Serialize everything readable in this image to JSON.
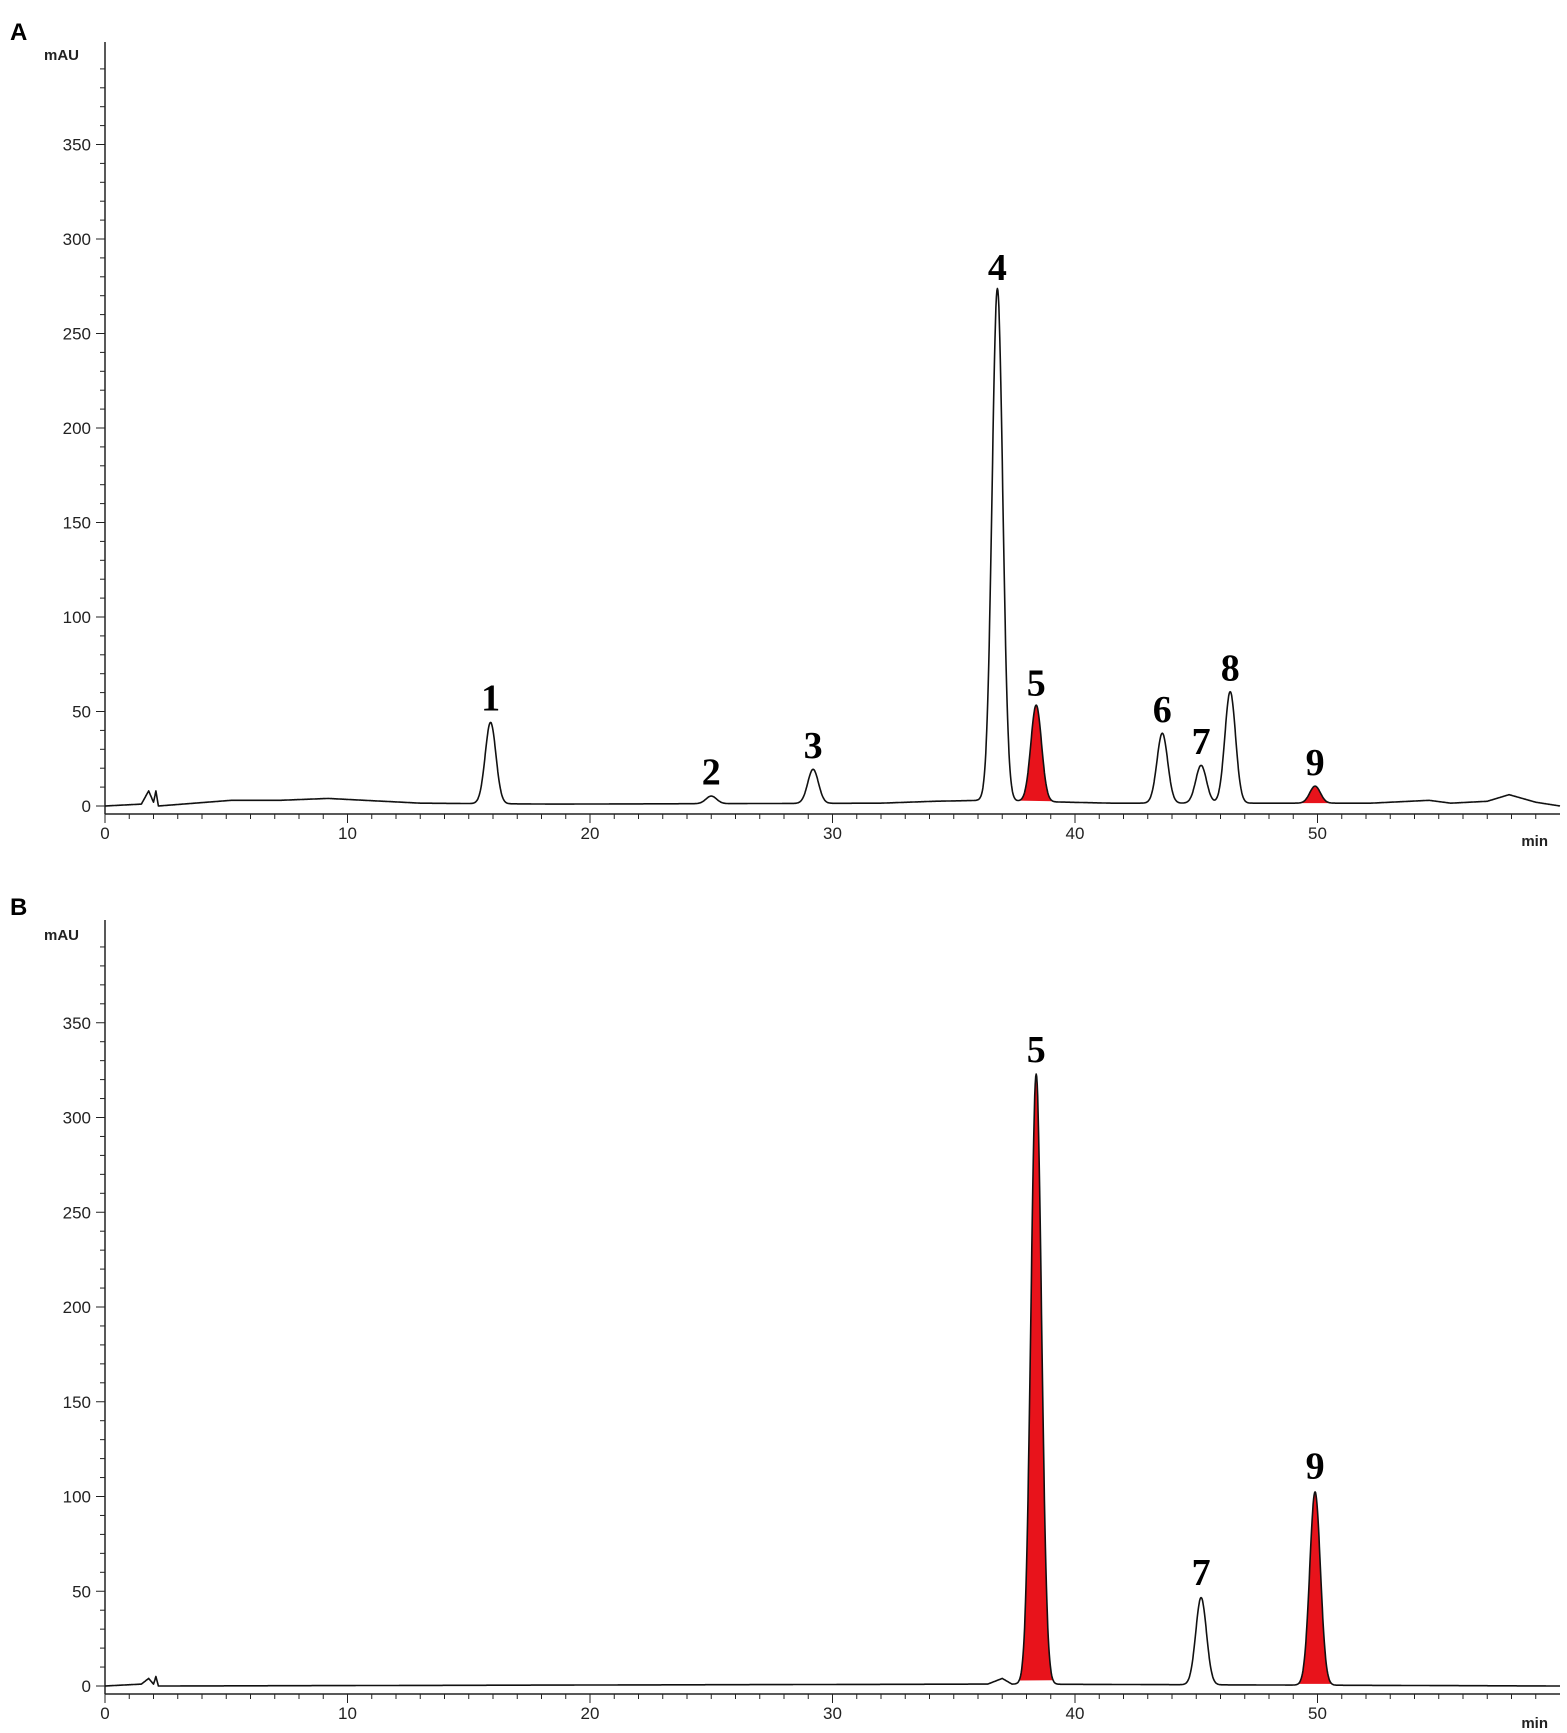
{
  "colors": {
    "trace": "#111111",
    "highlight": "#e8131b",
    "axis": "#222222"
  },
  "chart_data": [
    {
      "type": "line",
      "panel_label": "A",
      "y_unit": "mAU",
      "x_unit": "min",
      "xlim": [
        0,
        60
      ],
      "ylim": [
        -5,
        400
      ],
      "x_ticks": [
        0,
        10,
        20,
        30,
        40,
        50
      ],
      "y_ticks": [
        0,
        50,
        100,
        150,
        200,
        250,
        300,
        350
      ],
      "baseline": [
        [
          0,
          0
        ],
        [
          1.5,
          1
        ],
        [
          1.8,
          8
        ],
        [
          2.0,
          2
        ],
        [
          2.1,
          8
        ],
        [
          2.2,
          0
        ],
        [
          5.2,
          3
        ],
        [
          7.2,
          3
        ],
        [
          9.2,
          4
        ],
        [
          13,
          1.5
        ],
        [
          18.5,
          1
        ],
        [
          32,
          1.5
        ],
        [
          34.2,
          2.5
        ],
        [
          36.2,
          3
        ],
        [
          41.5,
          1.5
        ],
        [
          52.2,
          1.5
        ],
        [
          54.6,
          3
        ],
        [
          55.5,
          1.5
        ],
        [
          57,
          2.5
        ],
        [
          57.9,
          6
        ],
        [
          59,
          2
        ],
        [
          60,
          0
        ]
      ],
      "peaks": [
        {
          "label": "1",
          "rt": 15.9,
          "height": 43,
          "highlight": false
        },
        {
          "label": "2",
          "rt": 25.0,
          "height": 4,
          "highlight": false
        },
        {
          "label": "3",
          "rt": 29.2,
          "height": 18,
          "highlight": false
        },
        {
          "label": "4",
          "rt": 36.8,
          "height": 271,
          "highlight": false
        },
        {
          "label": "5",
          "rt": 38.4,
          "height": 51,
          "highlight": true
        },
        {
          "label": "6",
          "rt": 43.6,
          "height": 37,
          "highlight": false
        },
        {
          "label": "7",
          "rt": 45.2,
          "height": 20,
          "highlight": false
        },
        {
          "label": "8",
          "rt": 46.4,
          "height": 59,
          "highlight": false
        },
        {
          "label": "9",
          "rt": 49.9,
          "height": 9,
          "highlight": true
        }
      ]
    },
    {
      "type": "line",
      "panel_label": "B",
      "y_unit": "mAU",
      "x_unit": "min",
      "xlim": [
        0,
        60
      ],
      "ylim": [
        -5,
        400
      ],
      "x_ticks": [
        0,
        10,
        20,
        30,
        40,
        50
      ],
      "y_ticks": [
        0,
        50,
        100,
        150,
        200,
        250,
        300,
        350
      ],
      "baseline": [
        [
          0,
          0
        ],
        [
          1.5,
          1
        ],
        [
          1.8,
          4
        ],
        [
          2.0,
          1
        ],
        [
          2.1,
          5
        ],
        [
          2.2,
          0
        ],
        [
          36.4,
          1
        ],
        [
          37.0,
          4
        ],
        [
          37.4,
          1
        ],
        [
          60,
          0
        ]
      ],
      "peaks": [
        {
          "label": "5",
          "rt": 38.4,
          "height": 322,
          "highlight": true
        },
        {
          "label": "7",
          "rt": 45.2,
          "height": 46,
          "highlight": false
        },
        {
          "label": "9",
          "rt": 49.9,
          "height": 102,
          "highlight": true
        }
      ]
    }
  ]
}
